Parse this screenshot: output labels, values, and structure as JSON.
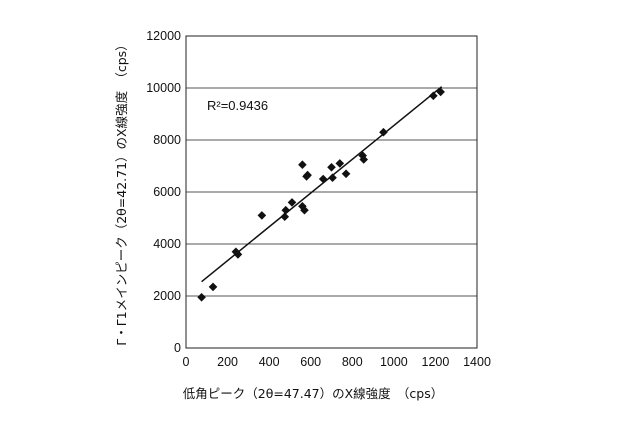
{
  "chart_data": {
    "type": "scatter",
    "xlabel": "低角ピーク（2θ=47.47）のX線強度　（cps）",
    "ylabel": "Γ・Γ1メインピーク（2θ=42.71）のX線強度　（cps）",
    "xlim": [
      0,
      1400
    ],
    "ylim": [
      0,
      12000
    ],
    "x_ticks": [
      "0",
      "200",
      "400",
      "600",
      "800",
      "1000",
      "1200",
      "1400"
    ],
    "y_ticks": [
      "0",
      "2000",
      "4000",
      "6000",
      "8000",
      "10000",
      "12000"
    ],
    "grid": {
      "horizontal": true,
      "vertical": false
    },
    "annotation": {
      "r2_label": "R²=0.9436"
    },
    "trendline": {
      "x": [
        75,
        1230
      ],
      "y": [
        2550,
        10050
      ]
    },
    "points": [
      {
        "x": 75,
        "y": 1950
      },
      {
        "x": 130,
        "y": 2350
      },
      {
        "x": 240,
        "y": 3700
      },
      {
        "x": 250,
        "y": 3600
      },
      {
        "x": 365,
        "y": 5100
      },
      {
        "x": 475,
        "y": 5050
      },
      {
        "x": 480,
        "y": 5300
      },
      {
        "x": 510,
        "y": 5600
      },
      {
        "x": 560,
        "y": 5450
      },
      {
        "x": 570,
        "y": 5300
      },
      {
        "x": 560,
        "y": 7050
      },
      {
        "x": 580,
        "y": 6600
      },
      {
        "x": 585,
        "y": 6650
      },
      {
        "x": 660,
        "y": 6500
      },
      {
        "x": 700,
        "y": 6950
      },
      {
        "x": 705,
        "y": 6550
      },
      {
        "x": 740,
        "y": 7100
      },
      {
        "x": 770,
        "y": 6700
      },
      {
        "x": 850,
        "y": 7400
      },
      {
        "x": 855,
        "y": 7250
      },
      {
        "x": 950,
        "y": 8300
      },
      {
        "x": 1190,
        "y": 9700
      },
      {
        "x": 1225,
        "y": 9850
      }
    ]
  }
}
